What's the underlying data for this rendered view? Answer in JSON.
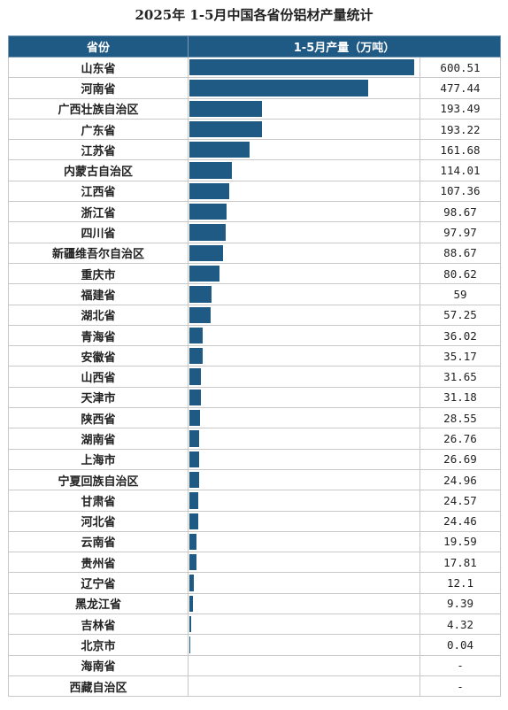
{
  "title": "2025年 1-5月中国各省份铝材产量统计",
  "header": {
    "province": "省份",
    "value": "1-5月产量（万吨）"
  },
  "colors": {
    "bar": "#1f5a84",
    "header_bg": "#1f5a84"
  },
  "chart_data": {
    "type": "bar",
    "orientation": "horizontal",
    "title": "2025年 1-5月中国各省份铝材产量统计",
    "xmax": 600.51,
    "categories": [
      "山东省",
      "河南省",
      "广西壮族自治区",
      "广东省",
      "江苏省",
      "内蒙古自治区",
      "江西省",
      "浙江省",
      "四川省",
      "新疆维吾尔自治区",
      "重庆市",
      "福建省",
      "湖北省",
      "青海省",
      "安徽省",
      "山西省",
      "天津市",
      "陕西省",
      "湖南省",
      "上海市",
      "宁夏回族自治区",
      "甘肃省",
      "河北省",
      "云南省",
      "贵州省",
      "辽宁省",
      "黑龙江省",
      "吉林省",
      "北京市",
      "海南省",
      "西藏自治区"
    ],
    "values": [
      600.51,
      477.44,
      193.49,
      193.22,
      161.68,
      114.01,
      107.36,
      98.67,
      97.97,
      88.67,
      80.62,
      59,
      57.25,
      36.02,
      35.17,
      31.65,
      31.18,
      28.55,
      26.76,
      26.69,
      24.96,
      24.57,
      24.46,
      19.59,
      17.81,
      12.1,
      9.39,
      4.32,
      0.04,
      null,
      null
    ],
    "labels": [
      "600.51",
      "477.44",
      "193.49",
      "193.22",
      "161.68",
      "114.01",
      "107.36",
      "98.67",
      "97.97",
      "88.67",
      "80.62",
      "59",
      "57.25",
      "36.02",
      "35.17",
      "31.65",
      "31.18",
      "28.55",
      "26.76",
      "26.69",
      "24.96",
      "24.57",
      "24.46",
      "19.59",
      "17.81",
      "12.1",
      "9.39",
      "4.32",
      "0.04",
      "-",
      "-"
    ]
  }
}
